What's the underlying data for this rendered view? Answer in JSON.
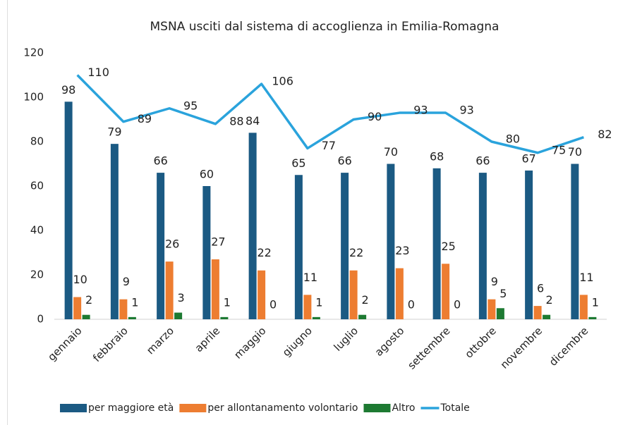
{
  "chart_data": {
    "type": "bar",
    "title": "MSNA usciti dal sistema di accoglienza in Emilia-Romagna",
    "categories": [
      "gennaio",
      "febbraio",
      "marzo",
      "aprile",
      "maggio",
      "giugno",
      "luglio",
      "agosto",
      "settembre",
      "ottobre",
      "novembre",
      "dicembre"
    ],
    "series": [
      {
        "name": "per maggiore età",
        "type": "bar",
        "color": "#1b5a83",
        "values": [
          98,
          79,
          66,
          60,
          84,
          65,
          66,
          70,
          68,
          66,
          67,
          70
        ]
      },
      {
        "name": "per allontanamento volontario",
        "type": "bar",
        "color": "#ed7d31",
        "values": [
          10,
          9,
          26,
          27,
          22,
          11,
          22,
          23,
          25,
          9,
          6,
          11
        ]
      },
      {
        "name": "Altro",
        "type": "bar",
        "color": "#1d7a32",
        "values": [
          2,
          1,
          3,
          1,
          0,
          1,
          2,
          0,
          0,
          5,
          2,
          1
        ]
      },
      {
        "name": "Totale",
        "type": "line",
        "color": "#2aa3dc",
        "values": [
          110,
          89,
          95,
          88,
          106,
          77,
          90,
          93,
          93,
          80,
          75,
          82
        ]
      }
    ],
    "ylim": [
      0,
      120
    ],
    "yticks": [
      0,
      20,
      40,
      60,
      80,
      100,
      120
    ],
    "grid": false,
    "legend": "bottom"
  }
}
